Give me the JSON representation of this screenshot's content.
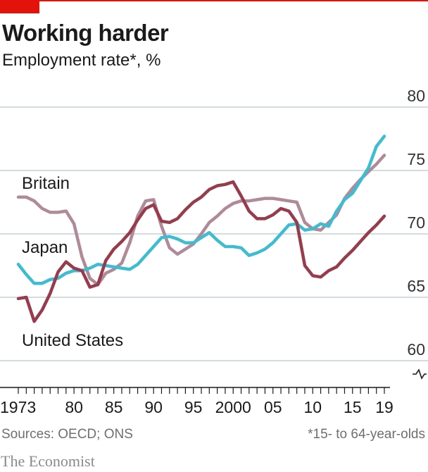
{
  "header": {
    "title": "Working harder",
    "subtitle": "Employment rate*, %"
  },
  "footer": {
    "sources": "Sources: OECD; ONS",
    "footnote": "*15- to 64-year-olds",
    "publisher": "The Economist"
  },
  "colors": {
    "brand_red": "#e3120b",
    "grid": "#b7c6d3",
    "axis": "#1a1a1a"
  },
  "chart_data": {
    "type": "line",
    "title": "Working harder",
    "subtitle": "Employment rate*, %",
    "xlabel": "",
    "ylabel": "",
    "xlim": [
      1973,
      2019
    ],
    "ylim": [
      60,
      80
    ],
    "axis_break": true,
    "grid": true,
    "y_ticks": [
      60,
      65,
      70,
      75,
      80
    ],
    "y_tick_labels": [
      "60",
      "65",
      "70",
      "75",
      "80"
    ],
    "x_tick_labels": [
      {
        "x": 1973,
        "label": "1973"
      },
      {
        "x": 1980,
        "label": "80"
      },
      {
        "x": 1985,
        "label": "85"
      },
      {
        "x": 1990,
        "label": "90"
      },
      {
        "x": 1995,
        "label": "95"
      },
      {
        "x": 2000,
        "label": "2000"
      },
      {
        "x": 2005,
        "label": "05"
      },
      {
        "x": 2010,
        "label": "10"
      },
      {
        "x": 2015,
        "label": "15"
      },
      {
        "x": 2019,
        "label": "19"
      }
    ],
    "series": [
      {
        "name": "Britain",
        "color": "#b08a98",
        "points": [
          [
            1973,
            72.9
          ],
          [
            1974,
            72.9
          ],
          [
            1975,
            72.6
          ],
          [
            1976,
            72.0
          ],
          [
            1977,
            71.7
          ],
          [
            1978,
            71.7
          ],
          [
            1979,
            71.8
          ],
          [
            1980,
            70.8
          ],
          [
            1981,
            68.2
          ],
          [
            1982,
            66.5
          ],
          [
            1983,
            66.0
          ],
          [
            1984,
            66.9
          ],
          [
            1985,
            67.2
          ],
          [
            1986,
            67.7
          ],
          [
            1987,
            69.3
          ],
          [
            1988,
            71.4
          ],
          [
            1989,
            72.6
          ],
          [
            1990,
            72.7
          ],
          [
            1991,
            70.6
          ],
          [
            1992,
            68.9
          ],
          [
            1993,
            68.4
          ],
          [
            1994,
            68.8
          ],
          [
            1995,
            69.2
          ],
          [
            1996,
            70.0
          ],
          [
            1997,
            70.9
          ],
          [
            1998,
            71.4
          ],
          [
            1999,
            72.0
          ],
          [
            2000,
            72.4
          ],
          [
            2001,
            72.6
          ],
          [
            2002,
            72.6
          ],
          [
            2003,
            72.7
          ],
          [
            2004,
            72.8
          ],
          [
            2005,
            72.8
          ],
          [
            2006,
            72.7
          ],
          [
            2007,
            72.6
          ],
          [
            2008,
            72.5
          ],
          [
            2009,
            70.9
          ],
          [
            2010,
            70.4
          ],
          [
            2011,
            70.3
          ],
          [
            2012,
            70.9
          ],
          [
            2013,
            71.5
          ],
          [
            2014,
            72.8
          ],
          [
            2015,
            73.6
          ],
          [
            2016,
            74.3
          ],
          [
            2017,
            74.9
          ],
          [
            2018,
            75.5
          ],
          [
            2019,
            76.2
          ]
        ]
      },
      {
        "name": "Japan",
        "color": "#3ebcd2",
        "points": [
          [
            1973,
            67.6
          ],
          [
            1974,
            66.8
          ],
          [
            1975,
            66.1
          ],
          [
            1976,
            66.1
          ],
          [
            1977,
            66.4
          ],
          [
            1978,
            66.5
          ],
          [
            1979,
            66.9
          ],
          [
            1980,
            67.1
          ],
          [
            1981,
            67.1
          ],
          [
            1982,
            67.3
          ],
          [
            1983,
            67.6
          ],
          [
            1984,
            67.5
          ],
          [
            1985,
            67.4
          ],
          [
            1986,
            67.3
          ],
          [
            1987,
            67.2
          ],
          [
            1988,
            67.6
          ],
          [
            1989,
            68.3
          ],
          [
            1990,
            69.0
          ],
          [
            1991,
            69.7
          ],
          [
            1992,
            69.8
          ],
          [
            1993,
            69.6
          ],
          [
            1994,
            69.3
          ],
          [
            1995,
            69.3
          ],
          [
            1996,
            69.7
          ],
          [
            1997,
            70.1
          ],
          [
            1998,
            69.5
          ],
          [
            1999,
            69.0
          ],
          [
            2000,
            69.0
          ],
          [
            2001,
            68.9
          ],
          [
            2002,
            68.3
          ],
          [
            2003,
            68.5
          ],
          [
            2004,
            68.8
          ],
          [
            2005,
            69.3
          ],
          [
            2006,
            70.0
          ],
          [
            2007,
            70.7
          ],
          [
            2008,
            70.8
          ],
          [
            2009,
            70.3
          ],
          [
            2010,
            70.4
          ],
          [
            2011,
            70.8
          ],
          [
            2012,
            70.6
          ],
          [
            2013,
            71.8
          ],
          [
            2014,
            72.7
          ],
          [
            2015,
            73.2
          ],
          [
            2016,
            74.2
          ],
          [
            2017,
            75.2
          ],
          [
            2018,
            76.9
          ],
          [
            2019,
            77.7
          ]
        ]
      },
      {
        "name": "United States",
        "color": "#963c4c",
        "points": [
          [
            1973,
            64.9
          ],
          [
            1974,
            65.0
          ],
          [
            1975,
            63.1
          ],
          [
            1976,
            64.0
          ],
          [
            1977,
            65.3
          ],
          [
            1978,
            67.0
          ],
          [
            1979,
            67.8
          ],
          [
            1980,
            67.3
          ],
          [
            1981,
            67.1
          ],
          [
            1982,
            65.8
          ],
          [
            1983,
            66.0
          ],
          [
            1984,
            67.9
          ],
          [
            1985,
            68.8
          ],
          [
            1986,
            69.4
          ],
          [
            1987,
            70.1
          ],
          [
            1988,
            71.1
          ],
          [
            1989,
            72.0
          ],
          [
            1990,
            72.3
          ],
          [
            1991,
            71.0
          ],
          [
            1992,
            70.9
          ],
          [
            1993,
            71.2
          ],
          [
            1994,
            71.9
          ],
          [
            1995,
            72.5
          ],
          [
            1996,
            72.9
          ],
          [
            1997,
            73.5
          ],
          [
            1998,
            73.8
          ],
          [
            1999,
            73.9
          ],
          [
            2000,
            74.1
          ],
          [
            2001,
            73.0
          ],
          [
            2002,
            71.8
          ],
          [
            2003,
            71.2
          ],
          [
            2004,
            71.2
          ],
          [
            2005,
            71.5
          ],
          [
            2006,
            72.0
          ],
          [
            2007,
            71.8
          ],
          [
            2008,
            70.9
          ],
          [
            2009,
            67.5
          ],
          [
            2010,
            66.7
          ],
          [
            2011,
            66.6
          ],
          [
            2012,
            67.1
          ],
          [
            2013,
            67.4
          ],
          [
            2014,
            68.1
          ],
          [
            2015,
            68.7
          ],
          [
            2016,
            69.4
          ],
          [
            2017,
            70.1
          ],
          [
            2018,
            70.7
          ],
          [
            2019,
            71.4
          ]
        ]
      }
    ]
  }
}
